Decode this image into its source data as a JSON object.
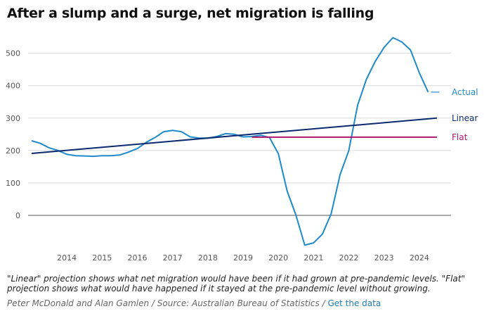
{
  "title": "After a slump and a surge, net migration is falling",
  "note": "\"Linear\" projection shows what net migration would have been if it had grown at pre-pandemic levels. \"Flat\" projection shows what would have happened if it stayed at the pre-pandemic level without growing.",
  "source": {
    "text": "Peter McDonald and Alan Gamlen / Source: Australian Bureau of Statistics /",
    "link": "Get the data"
  },
  "colors": {
    "actual": "#1f8ac9",
    "linear": "#0b2a6f",
    "flat": "#b0146f",
    "grid": "#d9d9d9",
    "zero": "#555555",
    "tick": "#555555"
  },
  "chart_data": {
    "type": "line",
    "title": "After a slump and a surge, net migration is falling",
    "xlabel": "",
    "ylabel": "",
    "xlim": [
      2013.4,
      2025.4
    ],
    "ylim": [
      -100,
      560
    ],
    "yticks": [
      0,
      100,
      200,
      300,
      400,
      500
    ],
    "xticks": [
      2014,
      2015,
      2016,
      2017,
      2018,
      2019,
      2020,
      2021,
      2022,
      2023,
      2024
    ],
    "grid": "horizontal",
    "series": [
      {
        "name": "Actual",
        "color": "#1f8ac9",
        "points": [
          [
            2013.5,
            230
          ],
          [
            2013.75,
            222
          ],
          [
            2014.0,
            208
          ],
          [
            2014.25,
            200
          ],
          [
            2014.5,
            188
          ],
          [
            2014.75,
            184
          ],
          [
            2015.0,
            183
          ],
          [
            2015.25,
            182
          ],
          [
            2015.5,
            184
          ],
          [
            2015.75,
            184
          ],
          [
            2016.0,
            186
          ],
          [
            2016.25,
            195
          ],
          [
            2016.5,
            206
          ],
          [
            2016.75,
            225
          ],
          [
            2017.0,
            240
          ],
          [
            2017.25,
            258
          ],
          [
            2017.5,
            262
          ],
          [
            2017.75,
            258
          ],
          [
            2018.0,
            242
          ],
          [
            2018.25,
            238
          ],
          [
            2018.5,
            238
          ],
          [
            2018.75,
            243
          ],
          [
            2019.0,
            252
          ],
          [
            2019.25,
            250
          ],
          [
            2019.5,
            242
          ],
          [
            2019.75,
            243
          ],
          [
            2020.0,
            247
          ],
          [
            2020.25,
            240
          ],
          [
            2020.5,
            190
          ],
          [
            2020.75,
            75
          ],
          [
            2021.0,
            0
          ],
          [
            2021.25,
            -92
          ],
          [
            2021.5,
            -85
          ],
          [
            2021.75,
            -58
          ],
          [
            2022.0,
            5
          ],
          [
            2022.25,
            125
          ],
          [
            2022.5,
            200
          ],
          [
            2022.75,
            340
          ],
          [
            2023.0,
            420
          ],
          [
            2023.25,
            475
          ],
          [
            2023.5,
            518
          ],
          [
            2023.75,
            548
          ],
          [
            2024.0,
            535
          ],
          [
            2024.25,
            510
          ],
          [
            2024.5,
            440
          ],
          [
            2024.75,
            380
          ]
        ]
      },
      {
        "name": "Linear",
        "color": "#0b2a6f",
        "points": [
          [
            2013.5,
            191
          ],
          [
            2025.0,
            300
          ]
        ]
      },
      {
        "name": "Flat",
        "color": "#b0146f",
        "points": [
          [
            2019.75,
            241
          ],
          [
            2025.0,
            241
          ]
        ]
      }
    ]
  }
}
